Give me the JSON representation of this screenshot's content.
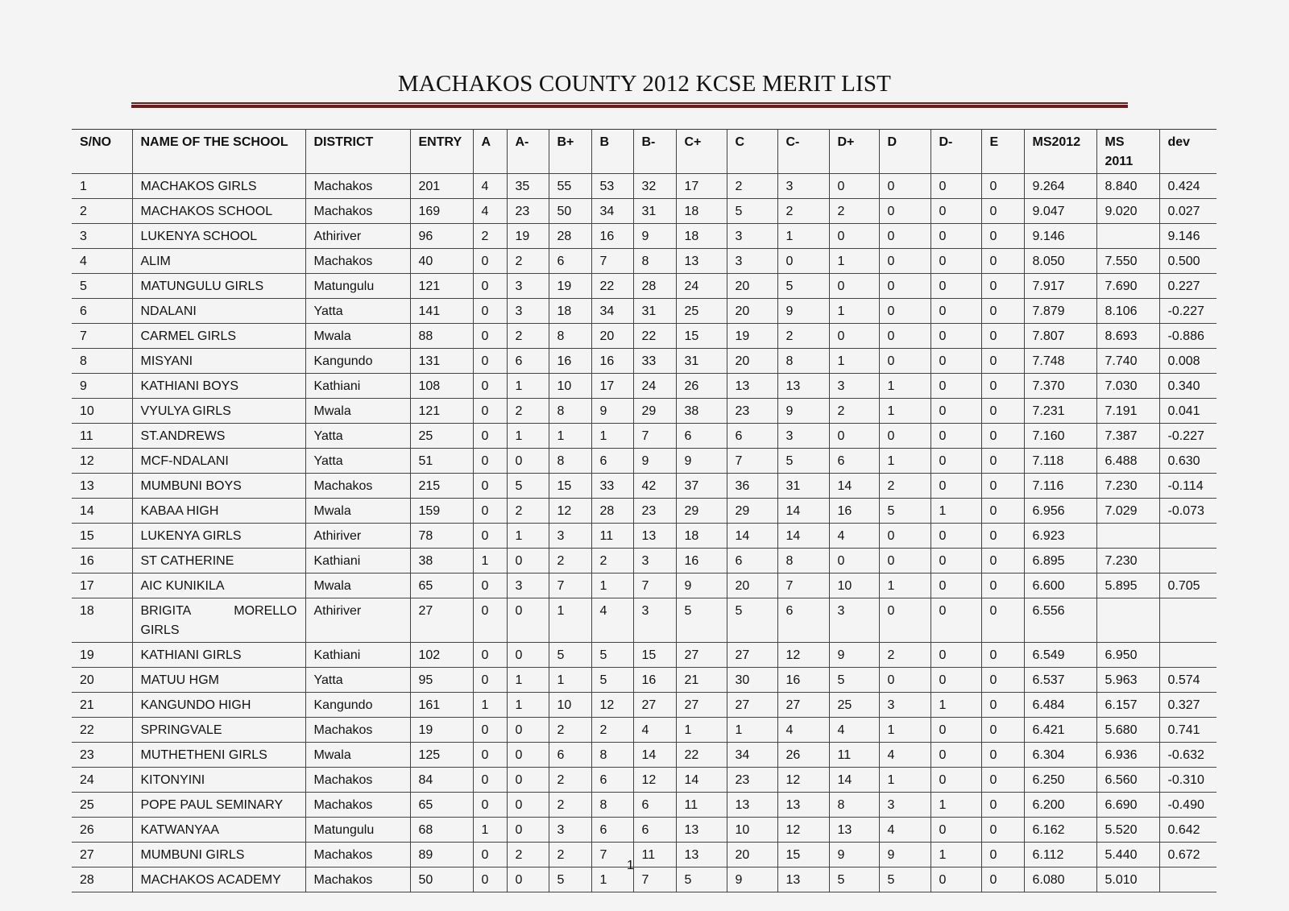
{
  "title": "MACHAKOS COUNTY 2012 KCSE MERIT LIST",
  "rule_color": "#6b1d1d",
  "page_number": "1",
  "table": {
    "headers": [
      "S/NO",
      "NAME OF THE SCHOOL",
      "DISTRICT",
      "ENTRY",
      "A",
      "A-",
      "B+",
      "B",
      "B-",
      "C+",
      "C",
      "C-",
      "D+",
      "D",
      "D-",
      "E",
      "MS2012",
      "MS 2011",
      "dev"
    ],
    "rows": [
      [
        "1",
        "MACHAKOS GIRLS",
        "Machakos",
        "201",
        "4",
        "35",
        "55",
        "53",
        "32",
        "17",
        "2",
        "3",
        "0",
        "0",
        "0",
        "0",
        "9.264",
        "8.840",
        "0.424"
      ],
      [
        "2",
        "MACHAKOS SCHOOL",
        "Machakos",
        "169",
        "4",
        "23",
        "50",
        "34",
        "31",
        "18",
        "5",
        "2",
        "2",
        "0",
        "0",
        "0",
        "9.047",
        "9.020",
        "0.027"
      ],
      [
        "3",
        "LUKENYA SCHOOL",
        "Athiriver",
        "96",
        "2",
        "19",
        "28",
        "16",
        "9",
        "18",
        "3",
        "1",
        "0",
        "0",
        "0",
        "0",
        "9.146",
        "",
        "9.146"
      ],
      [
        "4",
        "ALIM",
        "Machakos",
        "40",
        "0",
        "2",
        "6",
        "7",
        "8",
        "13",
        "3",
        "0",
        "1",
        "0",
        "0",
        "0",
        "8.050",
        "7.550",
        "0.500"
      ],
      [
        "5",
        "MATUNGULU GIRLS",
        "Matungulu",
        "121",
        "0",
        "3",
        "19",
        "22",
        "28",
        "24",
        "20",
        "5",
        "0",
        "0",
        "0",
        "0",
        "7.917",
        "7.690",
        "0.227"
      ],
      [
        "6",
        "NDALANI",
        "Yatta",
        "141",
        "0",
        "3",
        "18",
        "34",
        "31",
        "25",
        "20",
        "9",
        "1",
        "0",
        "0",
        "0",
        "7.879",
        "8.106",
        "-0.227"
      ],
      [
        "7",
        "CARMEL GIRLS",
        "Mwala",
        "88",
        "0",
        "2",
        "8",
        "20",
        "22",
        "15",
        "19",
        "2",
        "0",
        "0",
        "0",
        "0",
        "7.807",
        "8.693",
        "-0.886"
      ],
      [
        "8",
        "MISYANI",
        "Kangundo",
        "131",
        "0",
        "6",
        "16",
        "16",
        "33",
        "31",
        "20",
        "8",
        "1",
        "0",
        "0",
        "0",
        "7.748",
        "7.740",
        "0.008"
      ],
      [
        "9",
        "KATHIANI BOYS",
        "Kathiani",
        "108",
        "0",
        "1",
        "10",
        "17",
        "24",
        "26",
        "13",
        "13",
        "3",
        "1",
        "0",
        "0",
        "7.370",
        "7.030",
        "0.340"
      ],
      [
        "10",
        "VYULYA GIRLS",
        "Mwala",
        "121",
        "0",
        "2",
        "8",
        "9",
        "29",
        "38",
        "23",
        "9",
        "2",
        "1",
        "0",
        "0",
        "7.231",
        "7.191",
        "0.041"
      ],
      [
        "11",
        "ST.ANDREWS",
        "Yatta",
        "25",
        "0",
        "1",
        "1",
        "1",
        "7",
        "6",
        "6",
        "3",
        "0",
        "0",
        "0",
        "0",
        "7.160",
        "7.387",
        "-0.227"
      ],
      [
        "12",
        "MCF-NDALANI",
        "Yatta",
        "51",
        "0",
        "0",
        "8",
        "6",
        "9",
        "9",
        "7",
        "5",
        "6",
        "1",
        "0",
        "0",
        "7.118",
        "6.488",
        "0.630"
      ],
      [
        "13",
        "MUMBUNI BOYS",
        "Machakos",
        "215",
        "0",
        "5",
        "15",
        "33",
        "42",
        "37",
        "36",
        "31",
        "14",
        "2",
        "0",
        "0",
        "7.116",
        "7.230",
        "-0.114"
      ],
      [
        "14",
        "KABAA HIGH",
        "Mwala",
        "159",
        "0",
        "2",
        "12",
        "28",
        "23",
        "29",
        "29",
        "14",
        "16",
        "5",
        "1",
        "0",
        "6.956",
        "7.029",
        "-0.073"
      ],
      [
        "15",
        "LUKENYA GIRLS",
        "Athiriver",
        "78",
        "0",
        "1",
        "3",
        "11",
        "13",
        "18",
        "14",
        "14",
        "4",
        "0",
        "0",
        "0",
        "6.923",
        "",
        ""
      ],
      [
        "16",
        "ST  CATHERINE",
        "Kathiani",
        "38",
        "1",
        "0",
        "2",
        "2",
        "3",
        "16",
        "6",
        "8",
        "0",
        "0",
        "0",
        "0",
        "6.895",
        "7.230",
        ""
      ],
      [
        "17",
        "AIC KUNIKILA",
        "Mwala",
        "65",
        "0",
        "3",
        "7",
        "1",
        "7",
        "9",
        "20",
        "7",
        "10",
        "1",
        "0",
        "0",
        "6.600",
        "5.895",
        "0.705"
      ],
      [
        "18",
        "BRIGITA MORELLO GIRLS",
        "Athiriver",
        "27",
        "0",
        "0",
        "1",
        "4",
        "3",
        "5",
        "5",
        "6",
        "3",
        "0",
        "0",
        "0",
        "6.556",
        "",
        ""
      ],
      [
        "19",
        "KATHIANI GIRLS",
        "Kathiani",
        "102",
        "0",
        "0",
        "5",
        "5",
        "15",
        "27",
        "27",
        "12",
        "9",
        "2",
        "0",
        "0",
        "6.549",
        "6.950",
        ""
      ],
      [
        "20",
        "MATUU HGM",
        "Yatta",
        "95",
        "0",
        "1",
        "1",
        "5",
        "16",
        "21",
        "30",
        "16",
        "5",
        "0",
        "0",
        "0",
        "6.537",
        "5.963",
        "0.574"
      ],
      [
        "21",
        "KANGUNDO HIGH",
        "Kangundo",
        "161",
        "1",
        "1",
        "10",
        "12",
        "27",
        "27",
        "27",
        "27",
        "25",
        "3",
        "1",
        "0",
        "6.484",
        "6.157",
        "0.327"
      ],
      [
        "22",
        "SPRINGVALE",
        "Machakos",
        "19",
        "0",
        "0",
        "2",
        "2",
        "4",
        "1",
        "1",
        "4",
        "4",
        "1",
        "0",
        "0",
        "6.421",
        "5.680",
        "0.741"
      ],
      [
        "23",
        "MUTHETHENI GIRLS",
        "Mwala",
        "125",
        "0",
        "0",
        "6",
        "8",
        "14",
        "22",
        "34",
        "26",
        "11",
        "4",
        "0",
        "0",
        "6.304",
        "6.936",
        "-0.632"
      ],
      [
        "24",
        "KITONYINI",
        "Machakos",
        "84",
        "0",
        "0",
        "2",
        "6",
        "12",
        "14",
        "23",
        "12",
        "14",
        "1",
        "0",
        "0",
        "6.250",
        "6.560",
        "-0.310"
      ],
      [
        "25",
        "POPE PAUL SEMINARY",
        "Machakos",
        "65",
        "0",
        "0",
        "2",
        "8",
        "6",
        "11",
        "13",
        "13",
        "8",
        "3",
        "1",
        "0",
        "6.200",
        "6.690",
        "-0.490"
      ],
      [
        "26",
        "KATWANYAA",
        "Matungulu",
        "68",
        "1",
        "0",
        "3",
        "6",
        "6",
        "13",
        "10",
        "12",
        "13",
        "4",
        "0",
        "0",
        "6.162",
        "5.520",
        "0.642"
      ],
      [
        "27",
        "MUMBUNI GIRLS",
        "Machakos",
        "89",
        "0",
        "2",
        "2",
        "7",
        "11",
        "13",
        "20",
        "15",
        "9",
        "9",
        "1",
        "0",
        "6.112",
        "5.440",
        "0.672"
      ],
      [
        "28",
        "MACHAKOS ACADEMY",
        "Machakos",
        "50",
        "0",
        "0",
        "5",
        "1",
        "7",
        "5",
        "9",
        "13",
        "5",
        "5",
        "0",
        "0",
        "6.080",
        "5.010",
        ""
      ]
    ]
  }
}
